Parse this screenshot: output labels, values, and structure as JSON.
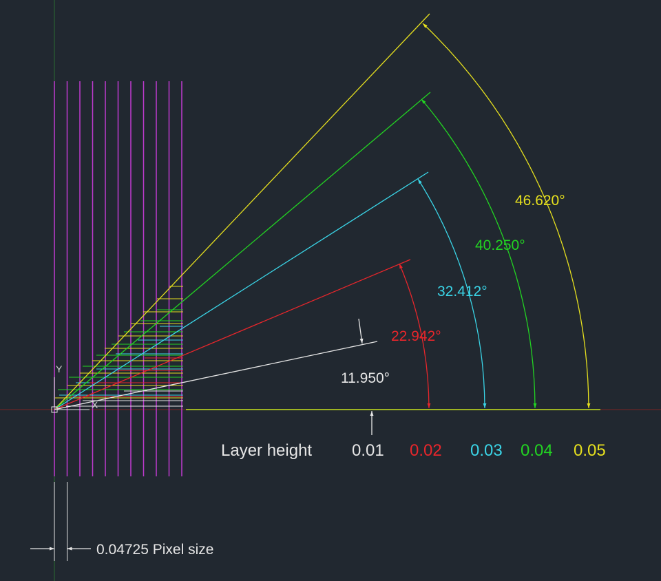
{
  "colors": {
    "background": "#212830",
    "white": "#e6e6e6",
    "red": "#e8262b",
    "cyan": "#3ad4e6",
    "green": "#22d422",
    "yellow": "#e6e01e",
    "magenta": "#c03ad0",
    "axis_green": "#2a6b32",
    "axis_red": "#7a2424"
  },
  "axis_labels": {
    "y": "Y",
    "x": "X"
  },
  "angle_labels": [
    {
      "text": "11.950°",
      "color": "white"
    },
    {
      "text": "22.942°",
      "color": "red"
    },
    {
      "text": "32.412°",
      "color": "cyan"
    },
    {
      "text": "40.250°",
      "color": "green"
    },
    {
      "text": "46.620°",
      "color": "yellow"
    }
  ],
  "legend": {
    "title": "Layer height",
    "items": [
      {
        "text": "0.01",
        "color": "white"
      },
      {
        "text": "0.02",
        "color": "red"
      },
      {
        "text": "0.03",
        "color": "cyan"
      },
      {
        "text": "0.04",
        "color": "green"
      },
      {
        "text": "0.05",
        "color": "yellow"
      }
    ]
  },
  "pixel_dimension": {
    "text": "0.04725 Pixel size"
  }
}
